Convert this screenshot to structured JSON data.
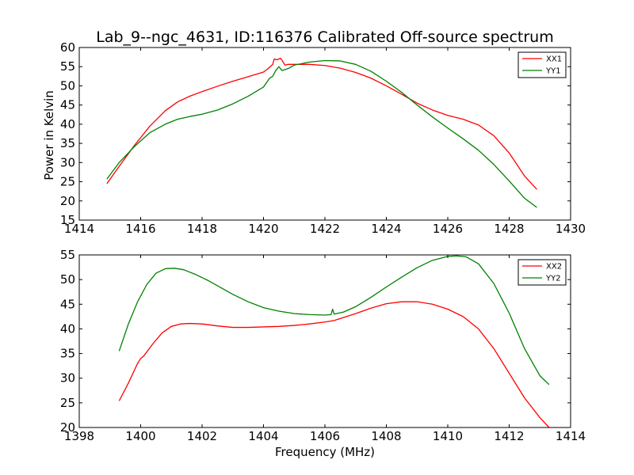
{
  "chart_data": [
    {
      "type": "line",
      "title": "Lab_9--ngc_4631, ID:116376 Calibrated Off-source spectrum",
      "xlabel": "",
      "ylabel": "Power in Kelvin",
      "xlim": [
        1414,
        1430
      ],
      "ylim": [
        15,
        60
      ],
      "xticks": [
        "1414",
        "1416",
        "1418",
        "1420",
        "1422",
        "1424",
        "1426",
        "1428",
        "1430"
      ],
      "yticks": [
        "15",
        "20",
        "25",
        "30",
        "35",
        "40",
        "45",
        "50",
        "55",
        "60"
      ],
      "legend_position": "top-right",
      "series": [
        {
          "name": "XX1",
          "color": "#ff0000",
          "x": [
            1414.9,
            1415.3,
            1415.8,
            1416.3,
            1416.8,
            1417.2,
            1417.6,
            1418.0,
            1418.5,
            1419.0,
            1419.5,
            1420.0,
            1420.15,
            1420.3,
            1420.35,
            1420.45,
            1420.55,
            1420.6,
            1420.7,
            1420.8,
            1421.0,
            1421.5,
            1422.0,
            1422.5,
            1423.0,
            1423.5,
            1424.0,
            1424.5,
            1425.0,
            1425.5,
            1426.0,
            1426.5,
            1427.0,
            1427.5,
            1428.0,
            1428.5,
            1428.9
          ],
          "y": [
            24.5,
            29.0,
            34.5,
            39.5,
            43.5,
            45.8,
            47.3,
            48.5,
            49.9,
            51.2,
            52.4,
            53.6,
            54.5,
            55.6,
            57.0,
            56.8,
            57.2,
            56.7,
            55.4,
            55.6,
            55.6,
            55.6,
            55.3,
            54.6,
            53.5,
            52.0,
            50.0,
            47.8,
            45.5,
            43.7,
            42.3,
            41.3,
            39.8,
            37.0,
            32.5,
            26.5,
            23.0
          ]
        },
        {
          "name": "YY1",
          "color": "#008000",
          "x": [
            1414.9,
            1415.3,
            1415.8,
            1416.3,
            1416.8,
            1417.2,
            1417.6,
            1418.0,
            1418.5,
            1419.0,
            1419.5,
            1420.0,
            1420.2,
            1420.3,
            1420.4,
            1420.5,
            1420.6,
            1420.8,
            1421.0,
            1421.5,
            1422.0,
            1422.5,
            1423.0,
            1423.5,
            1424.0,
            1424.5,
            1425.0,
            1425.5,
            1426.0,
            1426.5,
            1427.0,
            1427.5,
            1428.0,
            1428.5,
            1428.9
          ],
          "y": [
            25.7,
            30.0,
            34.2,
            37.8,
            40.0,
            41.3,
            42.0,
            42.6,
            43.7,
            45.3,
            47.3,
            49.7,
            52.0,
            52.5,
            54.0,
            55.0,
            54.0,
            54.5,
            55.4,
            56.2,
            56.6,
            56.5,
            55.6,
            53.8,
            51.2,
            48.3,
            45.0,
            41.9,
            39.0,
            36.2,
            33.2,
            29.5,
            25.2,
            20.7,
            18.3
          ]
        }
      ]
    },
    {
      "type": "line",
      "title": "",
      "xlabel": "Frequency (MHz)",
      "ylabel": "",
      "xlim": [
        1398,
        1414
      ],
      "ylim": [
        20,
        55
      ],
      "xticks": [
        "1398",
        "1400",
        "1402",
        "1404",
        "1406",
        "1408",
        "1410",
        "1412",
        "1414"
      ],
      "yticks": [
        "20",
        "25",
        "30",
        "35",
        "40",
        "45",
        "50",
        "55"
      ],
      "legend_position": "top-right",
      "series": [
        {
          "name": "XX2",
          "color": "#ff0000",
          "x": [
            1399.3,
            1399.6,
            1399.9,
            1400.0,
            1400.1,
            1400.4,
            1400.7,
            1401.0,
            1401.3,
            1401.6,
            1402.0,
            1402.5,
            1403.0,
            1403.5,
            1404.0,
            1404.5,
            1405.0,
            1405.5,
            1406.0,
            1406.3,
            1406.6,
            1407.0,
            1407.5,
            1408.0,
            1408.5,
            1409.0,
            1409.5,
            1410.0,
            1410.5,
            1411.0,
            1411.5,
            1412.0,
            1412.5,
            1413.0,
            1413.3
          ],
          "y": [
            25.4,
            29.0,
            33.0,
            34.0,
            34.5,
            37.0,
            39.2,
            40.5,
            41.0,
            41.1,
            41.0,
            40.6,
            40.3,
            40.3,
            40.4,
            40.5,
            40.7,
            41.0,
            41.4,
            41.7,
            42.3,
            43.1,
            44.2,
            45.1,
            45.5,
            45.5,
            45.0,
            44.0,
            42.5,
            40.0,
            36.0,
            31.0,
            26.0,
            22.0,
            20.0
          ]
        },
        {
          "name": "YY2",
          "color": "#008000",
          "x": [
            1399.3,
            1399.6,
            1399.9,
            1400.2,
            1400.5,
            1400.8,
            1401.1,
            1401.4,
            1401.8,
            1402.2,
            1402.6,
            1403.0,
            1403.5,
            1404.0,
            1404.5,
            1405.0,
            1405.5,
            1406.0,
            1406.2,
            1406.25,
            1406.3,
            1406.6,
            1407.0,
            1407.5,
            1408.0,
            1408.5,
            1409.0,
            1409.5,
            1410.0,
            1410.3,
            1410.6,
            1411.0,
            1411.5,
            1412.0,
            1412.5,
            1413.0,
            1413.3
          ],
          "y": [
            35.5,
            41.0,
            45.5,
            49.0,
            51.3,
            52.2,
            52.3,
            52.0,
            51.0,
            49.8,
            48.4,
            47.0,
            45.5,
            44.3,
            43.6,
            43.1,
            42.9,
            42.8,
            42.9,
            44.0,
            43.0,
            43.4,
            44.5,
            46.4,
            48.5,
            50.5,
            52.4,
            53.9,
            54.7,
            54.8,
            54.6,
            53.2,
            49.2,
            43.2,
            36.0,
            30.5,
            28.7
          ]
        }
      ]
    }
  ]
}
